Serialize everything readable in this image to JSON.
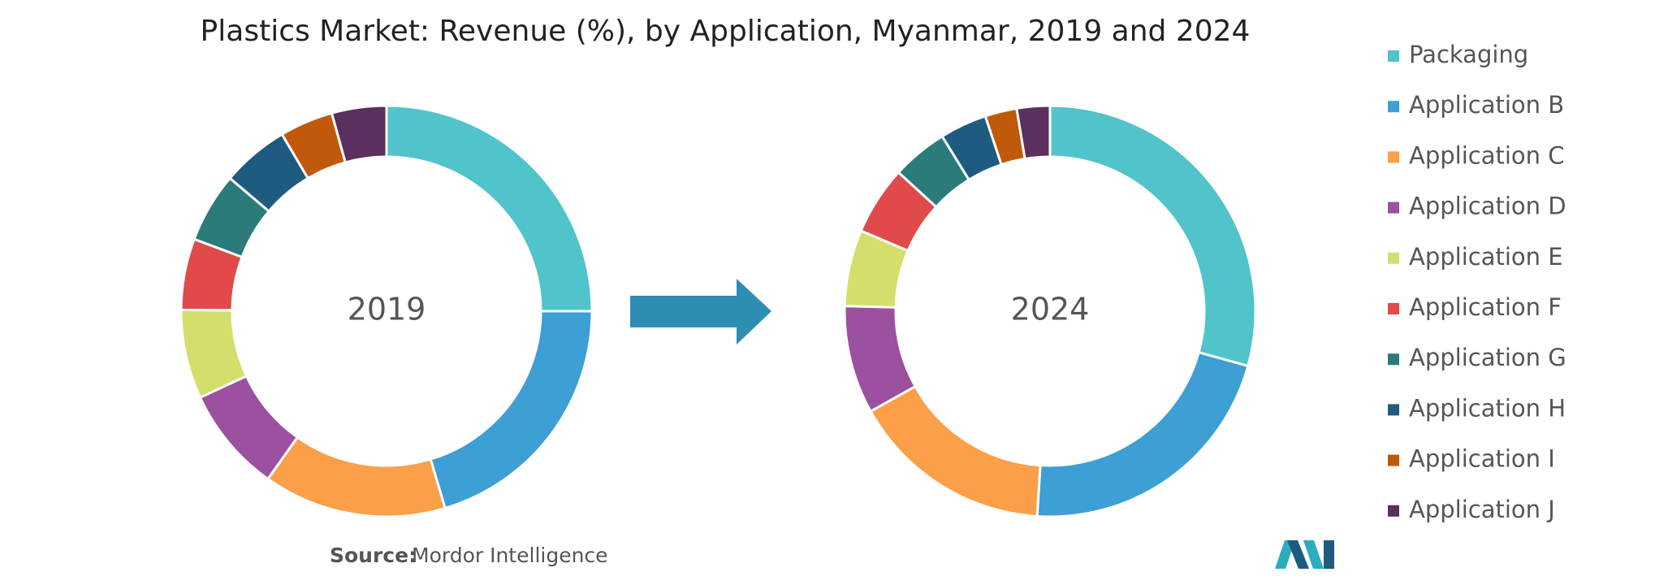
{
  "chart_data": {
    "type": "donut",
    "title": "Plastics Market: Revenue (%), by Application, Myanmar, 2019 and 2024",
    "categories": [
      "Packaging",
      "Application B",
      "Application C",
      "Application D",
      "Application E",
      "Application F",
      "Application G",
      "Application H",
      "Application I",
      "Application J"
    ],
    "colors": [
      "#50c4ca",
      "#3d9fd3",
      "#fb9f48",
      "#9c50a0",
      "#d4df6b",
      "#e04a4a",
      "#2b7b7b",
      "#1f5b80",
      "#c05a0a",
      "#5b2f5e"
    ],
    "series": [
      {
        "name": "2019",
        "values": [
          25,
          20.4,
          14.4,
          8.3,
          7,
          5.6,
          5.5,
          5.3,
          4.2,
          4.3
        ]
      },
      {
        "name": "2024",
        "values": [
          29.3,
          21.7,
          15.9,
          8.5,
          6,
          5.4,
          4.4,
          3.7,
          2.5,
          2.6
        ]
      }
    ],
    "legend": "right"
  },
  "source": {
    "label": "Source:",
    "text": "Mordor Intelligence"
  }
}
